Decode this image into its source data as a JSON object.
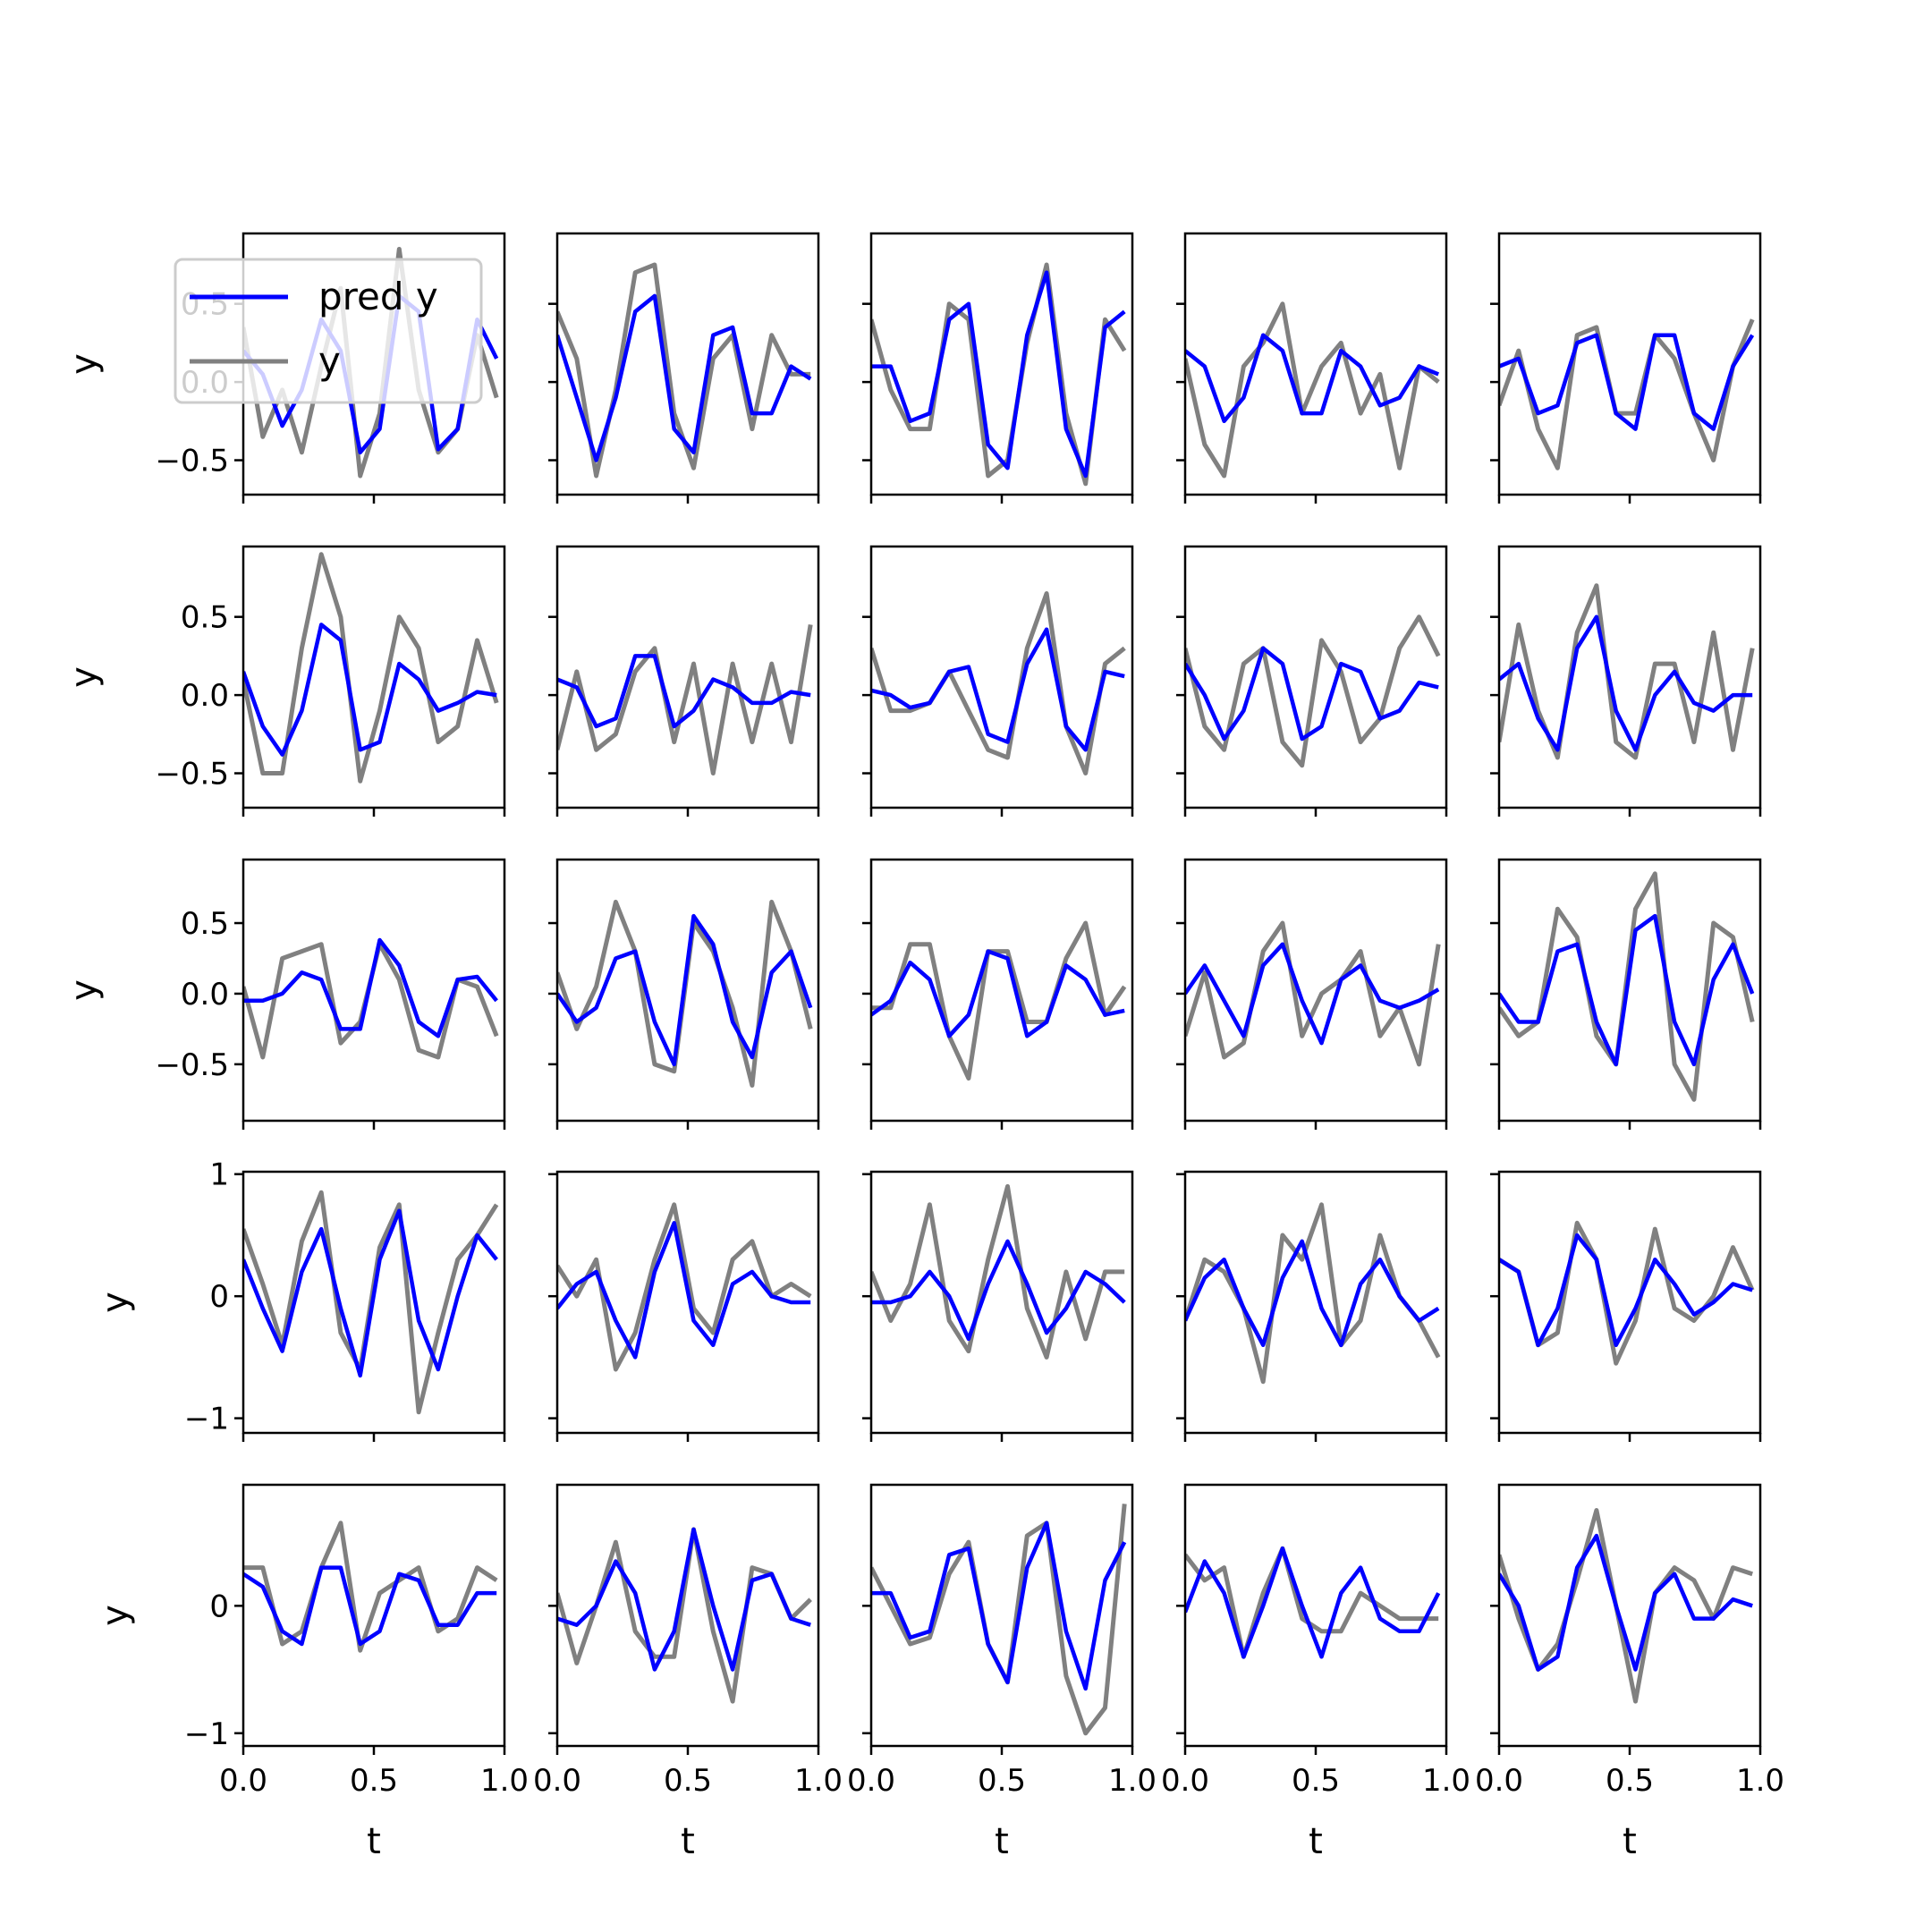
{
  "chart_data": {
    "type": "line",
    "layout": "5x5 grid of subplots",
    "xlabel": "t",
    "ylabel": "y",
    "xlim": [
      0,
      1
    ],
    "xticks": [
      "0.0",
      "0.5",
      "1.0"
    ],
    "legend": {
      "placement": "upper-left of first subplot",
      "entries": [
        {
          "label": "pred y",
          "color": "#0000ff"
        },
        {
          "label": "y",
          "color": "#808080"
        }
      ]
    },
    "colors": {
      "pred": "#0000ff",
      "y": "#808080"
    },
    "rows": [
      {
        "ylim": [
          -0.72,
          0.95
        ],
        "yticks": [
          {
            "v": -0.5,
            "label": "−0.5"
          },
          {
            "v": 0,
            "label": "0.0"
          },
          {
            "v": 0.5,
            "label": "0.5"
          }
        ]
      },
      {
        "ylim": [
          -0.72,
          0.95
        ],
        "yticks": [
          {
            "v": -0.5,
            "label": "−0.5"
          },
          {
            "v": 0,
            "label": "0.0"
          },
          {
            "v": 0.5,
            "label": "0.5"
          }
        ]
      },
      {
        "ylim": [
          -0.9,
          0.95
        ],
        "yticks": [
          {
            "v": -0.5,
            "label": "−0.5"
          },
          {
            "v": 0,
            "label": "0.0"
          },
          {
            "v": 0.5,
            "label": "0.5"
          }
        ]
      },
      {
        "ylim": [
          -1.12,
          1.02
        ],
        "yticks": [
          {
            "v": -1,
            "label": "−1"
          },
          {
            "v": 0,
            "label": "0"
          },
          {
            "v": 1,
            "label": "1"
          }
        ]
      },
      {
        "ylim": [
          -1.1,
          0.95
        ],
        "yticks": [
          {
            "v": -1,
            "label": "−1"
          },
          {
            "v": 0,
            "label": "0"
          }
        ]
      }
    ],
    "subplots": [
      {
        "row": 0,
        "col": 0,
        "pred": [
          0.2,
          0.05,
          -0.28,
          -0.05,
          0.4,
          0.2,
          -0.45,
          -0.3,
          0.55,
          0.45,
          -0.43,
          -0.3,
          0.4,
          0.15
        ],
        "y": [
          0.35,
          -0.35,
          -0.05,
          -0.45,
          0.1,
          0.6,
          -0.6,
          -0.2,
          0.85,
          -0.05,
          -0.45,
          -0.3,
          0.3,
          -0.1
        ]
      },
      {
        "row": 0,
        "col": 1,
        "pred": [
          0.3,
          -0.1,
          -0.5,
          -0.1,
          0.45,
          0.55,
          -0.3,
          -0.45,
          0.3,
          0.35,
          -0.2,
          -0.2,
          0.1,
          0.02
        ],
        "y": [
          0.45,
          0.15,
          -0.6,
          -0.05,
          0.7,
          0.75,
          -0.2,
          -0.55,
          0.15,
          0.3,
          -0.3,
          0.3,
          0.05,
          0.05
        ]
      },
      {
        "row": 0,
        "col": 2,
        "pred": [
          0.1,
          0.1,
          -0.25,
          -0.2,
          0.4,
          0.5,
          -0.4,
          -0.55,
          0.3,
          0.7,
          -0.3,
          -0.6,
          0.35,
          0.45
        ],
        "y": [
          0.4,
          -0.05,
          -0.3,
          -0.3,
          0.5,
          0.4,
          -0.6,
          -0.5,
          0.25,
          0.75,
          -0.2,
          -0.65,
          0.4,
          0.2
        ]
      },
      {
        "row": 0,
        "col": 3,
        "pred": [
          0.2,
          0.1,
          -0.25,
          -0.1,
          0.3,
          0.2,
          -0.2,
          -0.2,
          0.2,
          0.1,
          -0.15,
          -0.1,
          0.1,
          0.05
        ],
        "y": [
          0.15,
          -0.4,
          -0.6,
          0.1,
          0.25,
          0.5,
          -0.2,
          0.1,
          0.25,
          -0.2,
          0.05,
          -0.55,
          0.1,
          0.0
        ]
      },
      {
        "row": 0,
        "col": 4,
        "pred": [
          0.1,
          0.15,
          -0.2,
          -0.15,
          0.25,
          0.3,
          -0.2,
          -0.3,
          0.3,
          0.3,
          -0.2,
          -0.3,
          0.1,
          0.3
        ],
        "y": [
          -0.15,
          0.2,
          -0.3,
          -0.55,
          0.3,
          0.35,
          -0.2,
          -0.2,
          0.3,
          0.15,
          -0.2,
          -0.5,
          0.1,
          0.4
        ]
      },
      {
        "row": 1,
        "col": 0,
        "pred": [
          0.15,
          -0.2,
          -0.38,
          -0.1,
          0.45,
          0.35,
          -0.35,
          -0.3,
          0.2,
          0.1,
          -0.1,
          -0.05,
          0.02,
          0.0
        ],
        "y": [
          0.1,
          -0.5,
          -0.5,
          0.3,
          0.9,
          0.5,
          -0.55,
          -0.1,
          0.5,
          0.3,
          -0.3,
          -0.2,
          0.35,
          -0.05
        ]
      },
      {
        "row": 1,
        "col": 1,
        "pred": [
          0.1,
          0.05,
          -0.2,
          -0.15,
          0.25,
          0.25,
          -0.2,
          -0.1,
          0.1,
          0.05,
          -0.05,
          -0.05,
          0.02,
          0.0
        ],
        "y": [
          -0.35,
          0.15,
          -0.35,
          -0.25,
          0.15,
          0.3,
          -0.3,
          0.2,
          -0.5,
          0.2,
          -0.3,
          0.2,
          -0.3,
          0.45
        ]
      },
      {
        "row": 1,
        "col": 2,
        "pred": [
          0.03,
          0.0,
          -0.08,
          -0.05,
          0.15,
          0.18,
          -0.25,
          -0.3,
          0.2,
          0.42,
          -0.2,
          -0.35,
          0.15,
          0.12
        ],
        "y": [
          0.3,
          -0.1,
          -0.1,
          -0.05,
          0.15,
          -0.1,
          -0.35,
          -0.4,
          0.3,
          0.65,
          -0.2,
          -0.5,
          0.2,
          0.3
        ]
      },
      {
        "row": 1,
        "col": 3,
        "pred": [
          0.2,
          0.0,
          -0.28,
          -0.1,
          0.3,
          0.2,
          -0.28,
          -0.2,
          0.2,
          0.15,
          -0.15,
          -0.1,
          0.08,
          0.05
        ],
        "y": [
          0.3,
          -0.2,
          -0.35,
          0.2,
          0.3,
          -0.3,
          -0.45,
          0.35,
          0.15,
          -0.3,
          -0.15,
          0.3,
          0.5,
          0.25
        ]
      },
      {
        "row": 1,
        "col": 4,
        "pred": [
          0.1,
          0.2,
          -0.15,
          -0.35,
          0.3,
          0.5,
          -0.1,
          -0.35,
          0.0,
          0.15,
          -0.05,
          -0.1,
          0.0,
          0.0
        ],
        "y": [
          -0.3,
          0.45,
          -0.1,
          -0.4,
          0.4,
          0.7,
          -0.3,
          -0.4,
          0.2,
          0.2,
          -0.3,
          0.4,
          -0.35,
          0.3
        ]
      },
      {
        "row": 2,
        "col": 0,
        "pred": [
          -0.05,
          -0.05,
          0.0,
          0.15,
          0.1,
          -0.25,
          -0.25,
          0.38,
          0.2,
          -0.2,
          -0.3,
          0.1,
          0.12,
          -0.05
        ],
        "y": [
          0.05,
          -0.45,
          0.25,
          0.3,
          0.35,
          -0.35,
          -0.2,
          0.35,
          0.1,
          -0.4,
          -0.45,
          0.1,
          0.05,
          -0.3
        ]
      },
      {
        "row": 2,
        "col": 1,
        "pred": [
          0.0,
          -0.2,
          -0.1,
          0.25,
          0.3,
          -0.2,
          -0.5,
          0.55,
          0.35,
          -0.2,
          -0.45,
          0.15,
          0.3,
          -0.1
        ],
        "y": [
          0.15,
          -0.25,
          0.05,
          0.65,
          0.3,
          -0.5,
          -0.55,
          0.5,
          0.3,
          -0.1,
          -0.65,
          0.65,
          0.3,
          -0.25
        ]
      },
      {
        "row": 2,
        "col": 2,
        "pred": [
          -0.15,
          -0.05,
          0.22,
          0.1,
          -0.3,
          -0.15,
          0.3,
          0.25,
          -0.3,
          -0.2,
          0.2,
          0.1,
          -0.15,
          -0.12
        ],
        "y": [
          -0.1,
          -0.1,
          0.35,
          0.35,
          -0.3,
          -0.6,
          0.3,
          0.3,
          -0.2,
          -0.2,
          0.25,
          0.5,
          -0.15,
          0.05
        ]
      },
      {
        "row": 2,
        "col": 3,
        "pred": [
          0.0,
          0.2,
          -0.05,
          -0.3,
          0.2,
          0.35,
          -0.05,
          -0.35,
          0.1,
          0.2,
          -0.05,
          -0.1,
          -0.05,
          0.03
        ],
        "y": [
          -0.3,
          0.15,
          -0.45,
          -0.35,
          0.3,
          0.5,
          -0.3,
          0.0,
          0.1,
          0.3,
          -0.3,
          -0.1,
          -0.5,
          0.35
        ]
      },
      {
        "row": 2,
        "col": 4,
        "pred": [
          0.0,
          -0.2,
          -0.2,
          0.3,
          0.35,
          -0.2,
          -0.5,
          0.45,
          0.55,
          -0.2,
          -0.5,
          0.1,
          0.35,
          0.0
        ],
        "y": [
          -0.1,
          -0.3,
          -0.2,
          0.6,
          0.4,
          -0.3,
          -0.5,
          0.6,
          0.85,
          -0.5,
          -0.75,
          0.5,
          0.4,
          -0.2
        ]
      },
      {
        "row": 3,
        "col": 0,
        "pred": [
          0.3,
          -0.1,
          -0.45,
          0.2,
          0.55,
          -0.1,
          -0.65,
          0.3,
          0.7,
          -0.2,
          -0.6,
          0.0,
          0.5,
          0.3
        ],
        "y": [
          0.55,
          0.1,
          -0.4,
          0.45,
          0.85,
          -0.3,
          -0.6,
          0.4,
          0.75,
          -0.95,
          -0.3,
          0.3,
          0.5,
          0.75
        ]
      },
      {
        "row": 3,
        "col": 1,
        "pred": [
          -0.1,
          0.1,
          0.2,
          -0.2,
          -0.5,
          0.2,
          0.6,
          -0.2,
          -0.4,
          0.1,
          0.2,
          0.0,
          -0.05,
          -0.05
        ],
        "y": [
          0.25,
          0.0,
          0.3,
          -0.6,
          -0.3,
          0.3,
          0.75,
          -0.1,
          -0.3,
          0.3,
          0.45,
          0.0,
          0.1,
          0.0
        ]
      },
      {
        "row": 3,
        "col": 2,
        "pred": [
          -0.05,
          -0.05,
          0.0,
          0.2,
          0.0,
          -0.35,
          0.1,
          0.45,
          0.1,
          -0.3,
          -0.1,
          0.2,
          0.1,
          -0.05
        ],
        "y": [
          0.2,
          -0.2,
          0.1,
          0.75,
          -0.2,
          -0.45,
          0.3,
          0.9,
          -0.1,
          -0.5,
          0.2,
          -0.35,
          0.2,
          0.2
        ]
      },
      {
        "row": 3,
        "col": 3,
        "pred": [
          -0.2,
          0.15,
          0.3,
          -0.1,
          -0.4,
          0.15,
          0.45,
          -0.1,
          -0.4,
          0.1,
          0.3,
          0.0,
          -0.2,
          -0.1
        ],
        "y": [
          -0.2,
          0.3,
          0.2,
          -0.1,
          -0.7,
          0.5,
          0.3,
          0.75,
          -0.4,
          -0.2,
          0.5,
          0.0,
          -0.2,
          -0.5
        ]
      },
      {
        "row": 3,
        "col": 4,
        "pred": [
          0.3,
          0.2,
          -0.4,
          -0.1,
          0.5,
          0.3,
          -0.4,
          -0.1,
          0.3,
          0.1,
          -0.15,
          -0.05,
          0.1,
          0.05
        ],
        "y": [
          0.3,
          0.2,
          -0.4,
          -0.3,
          0.6,
          0.3,
          -0.55,
          -0.2,
          0.55,
          -0.1,
          -0.2,
          0.0,
          0.4,
          0.05
        ]
      },
      {
        "row": 4,
        "col": 0,
        "pred": [
          0.25,
          0.15,
          -0.2,
          -0.3,
          0.3,
          0.3,
          -0.3,
          -0.2,
          0.25,
          0.2,
          -0.15,
          -0.15,
          0.1,
          0.1
        ],
        "y": [
          0.3,
          0.3,
          -0.3,
          -0.2,
          0.3,
          0.65,
          -0.35,
          0.1,
          0.2,
          0.3,
          -0.2,
          -0.1,
          0.3,
          0.2
        ]
      },
      {
        "row": 4,
        "col": 1,
        "pred": [
          -0.1,
          -0.15,
          0.0,
          0.35,
          0.1,
          -0.5,
          -0.2,
          0.6,
          0.0,
          -0.5,
          0.2,
          0.25,
          -0.1,
          -0.15
        ],
        "y": [
          0.1,
          -0.45,
          0.0,
          0.5,
          -0.2,
          -0.4,
          -0.4,
          0.6,
          -0.2,
          -0.75,
          0.3,
          0.25,
          -0.1,
          0.05
        ]
      },
      {
        "row": 4,
        "col": 2,
        "pred": [
          0.1,
          0.1,
          -0.25,
          -0.2,
          0.4,
          0.45,
          -0.3,
          -0.6,
          0.3,
          0.65,
          -0.2,
          -0.65,
          0.2,
          0.5
        ],
        "y": [
          0.3,
          0.0,
          -0.3,
          -0.25,
          0.25,
          0.5,
          -0.3,
          -0.6,
          0.55,
          0.65,
          -0.55,
          -1.0,
          -0.8,
          0.8
        ]
      },
      {
        "row": 4,
        "col": 3,
        "pred": [
          -0.05,
          0.35,
          0.1,
          -0.4,
          0.0,
          0.45,
          0.0,
          -0.4,
          0.1,
          0.3,
          -0.1,
          -0.2,
          -0.2,
          0.1
        ],
        "y": [
          0.4,
          0.2,
          0.3,
          -0.4,
          0.1,
          0.45,
          -0.1,
          -0.2,
          -0.2,
          0.1,
          0.0,
          -0.1,
          -0.1,
          -0.1
        ]
      },
      {
        "row": 4,
        "col": 4,
        "pred": [
          0.25,
          0.0,
          -0.5,
          -0.4,
          0.3,
          0.55,
          0.0,
          -0.5,
          0.1,
          0.25,
          -0.1,
          -0.1,
          0.05,
          0.0
        ],
        "y": [
          0.4,
          -0.1,
          -0.5,
          -0.3,
          0.2,
          0.75,
          0.0,
          -0.75,
          0.1,
          0.3,
          0.2,
          -0.1,
          0.3,
          0.25
        ]
      }
    ]
  }
}
